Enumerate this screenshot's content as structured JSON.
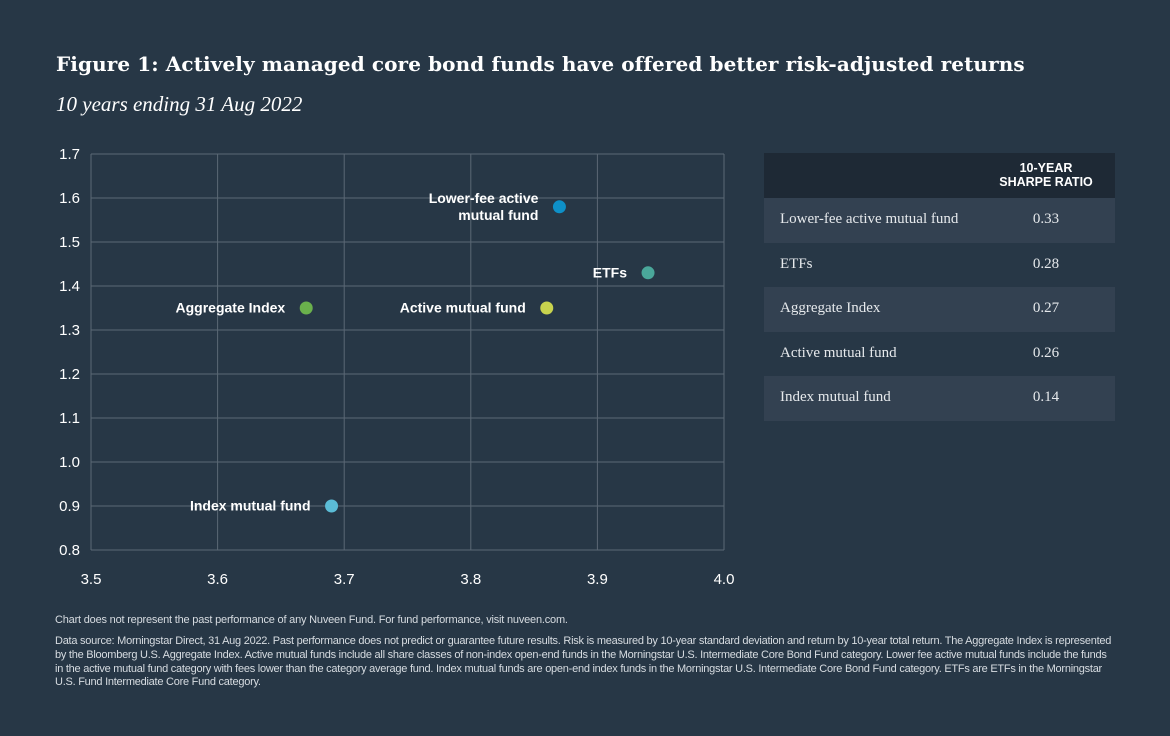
{
  "header": {
    "title": "Figure 1: Actively managed core bond funds have offered better risk-adjusted returns",
    "subtitle": "10 years ending 31 Aug 2022"
  },
  "chart_data": {
    "type": "scatter",
    "x_ticks": [
      "3.5",
      "3.6",
      "3.7",
      "3.8",
      "3.9",
      "4.0"
    ],
    "y_ticks": [
      "0.8",
      "0.9",
      "1.0",
      "1.1",
      "1.2",
      "1.3",
      "1.4",
      "1.5",
      "1.6",
      "1.7"
    ],
    "xlim": [
      3.5,
      4.0
    ],
    "ylim": [
      0.8,
      1.7
    ],
    "grid": true,
    "points": [
      {
        "label": "Lower-fee active mutual fund",
        "label_lines": [
          "Lower-fee active",
          "mutual fund"
        ],
        "x": 3.87,
        "y": 1.58,
        "color": "#0e90c8",
        "label_side": "left"
      },
      {
        "label": "ETFs",
        "label_lines": [
          "ETFs"
        ],
        "x": 3.94,
        "y": 1.43,
        "color": "#4aa79a",
        "label_side": "left"
      },
      {
        "label": "Aggregate Index",
        "label_lines": [
          "Aggregate Index"
        ],
        "x": 3.67,
        "y": 1.35,
        "color": "#6ab04c",
        "label_side": "left"
      },
      {
        "label": "Active mutual fund",
        "label_lines": [
          "Active mutual fund"
        ],
        "x": 3.86,
        "y": 1.35,
        "color": "#c8d34e",
        "label_side": "left"
      },
      {
        "label": "Index mutual fund",
        "label_lines": [
          "Index mutual fund"
        ],
        "x": 3.69,
        "y": 0.9,
        "color": "#5bbcd6",
        "label_side": "left"
      }
    ]
  },
  "table": {
    "header": [
      "10-YEAR",
      "SHARPE RATIO"
    ],
    "rows": [
      {
        "name": "Lower-fee active mutual fund",
        "value": "0.33"
      },
      {
        "name": "ETFs",
        "value": "0.28"
      },
      {
        "name": "Aggregate Index",
        "value": "0.27"
      },
      {
        "name": "Active mutual fund",
        "value": "0.26"
      },
      {
        "name": "Index mutual fund",
        "value": "0.14"
      }
    ]
  },
  "footer": {
    "note": "Chart does not represent the past performance of any Nuveen Fund. For fund performance, visit nuveen.com.",
    "source": "Data source: Morningstar Direct, 31 Aug 2022. Past performance does not predict or guarantee future results. Risk is measured by 10-year standard deviation and return by 10-year total return. The Aggregate Index is represented by the Bloomberg U.S. Aggregate Index. Active mutual funds include all share classes of non-index open-end funds in the Morningstar U.S. Intermediate Core Bond Fund category. Lower fee active mutual funds include the funds in the active mutual fund category with fees lower than the category average fund. Index mutual funds are open-end index funds in the Morningstar U.S. Intermediate Core Bond Fund category. ETFs are ETFs in the Morningstar U.S. Fund Intermediate Core Fund category."
  }
}
